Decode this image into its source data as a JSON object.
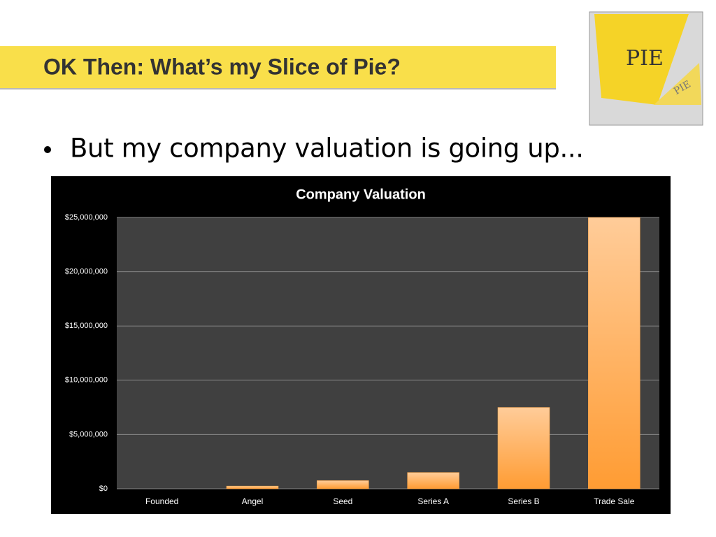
{
  "slide": {
    "title": "OK Then: What’s my Slice of Pie?",
    "bullet": "But my company valuation is going up...",
    "image_labels": [
      "PIE",
      "PIE"
    ]
  },
  "chart_data": {
    "type": "bar",
    "title": "Company Valuation",
    "categories": [
      "Founded",
      "Angel",
      "Seed",
      "Series A",
      "Series B",
      "Trade Sale"
    ],
    "values": [
      0,
      250000,
      750000,
      1500000,
      7500000,
      25000000
    ],
    "color": "#ffa646",
    "ylim": [
      0,
      25000000
    ],
    "yticks": [
      {
        "value": 0,
        "label": "$0"
      },
      {
        "value": 5000000,
        "label": "$5,000,000"
      },
      {
        "value": 10000000,
        "label": "$10,000,000"
      },
      {
        "value": 15000000,
        "label": "$15,000,000"
      },
      {
        "value": 20000000,
        "label": "$20,000,000"
      },
      {
        "value": 25000000,
        "label": "$25,000,000"
      }
    ],
    "grid": true
  }
}
